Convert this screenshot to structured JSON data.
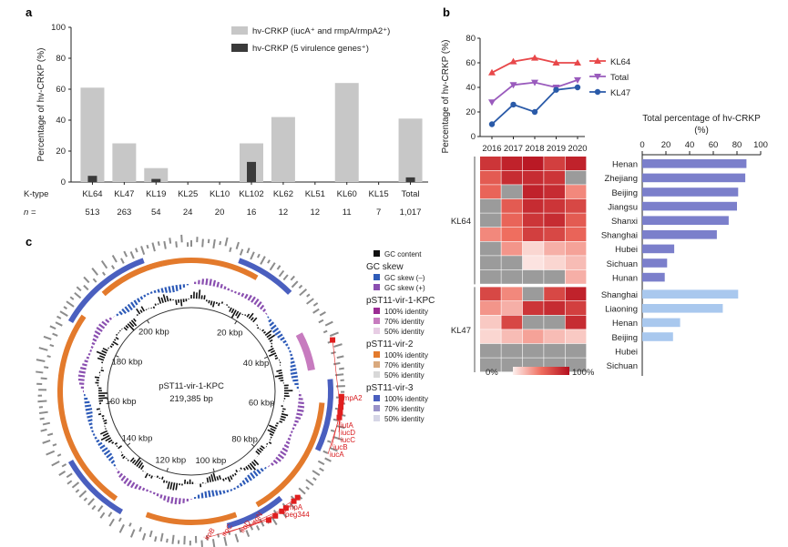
{
  "colors": {
    "bar_a": "#c7c7c7",
    "bar_b": "#3a3a3a",
    "kl64": "#e8484a",
    "total": "#9a5bbd",
    "kl47": "#2a5aa8",
    "prov_kl64": "#7b7fcb",
    "prov_kl47": "#a9c8ee",
    "heat_grey": "#9b9b9b",
    "gc_content": "#111111",
    "gc_neg": "#2e5bb8",
    "gc_pos": "#8a4fb0",
    "ring1": "#9b2b93",
    "ring1_70": "#c77bbf",
    "ring1_50": "#e7cde4",
    "ring2": "#e37a2c",
    "ring2_70": "#d9a97e",
    "ring2_50": "#d8d8d8",
    "ring3": "#4a5fbf",
    "ring3_70": "#9a93c9",
    "ring3_50": "#d6d6e6",
    "gene_red": "#e01f1f",
    "gene_grey": "#8c8c8c"
  },
  "panel_a": {
    "label": "a",
    "ylabel": "Percentage of hv-CRKP (%)",
    "yticks": [
      "0",
      "20",
      "40",
      "60",
      "80",
      "100"
    ],
    "row_ktype_label": "K-type",
    "row_n_label": "n =",
    "legend": [
      {
        "name": "hv-CRKP (iucA⁺ and rmpA/rmpA2⁺)"
      },
      {
        "name": "hv-CRKP (5 virulence genes⁺)"
      }
    ]
  },
  "panel_b": {
    "label": "b",
    "ylabel": "Percentage of hv-CRKP (%)",
    "yticks": [
      "0",
      "20",
      "40",
      "60",
      "80"
    ],
    "years": [
      "2016",
      "2017",
      "2018",
      "2019",
      "2020"
    ],
    "heat_group_labels": [
      "KL64",
      "KL47"
    ],
    "heat_scale_min": "0%",
    "heat_scale_max": "100%",
    "bar_title_line1": "Total percentage of hv-CRKP",
    "bar_title_line2": "(%)",
    "bar_ticks": [
      "0",
      "20",
      "40",
      "60",
      "80",
      "100"
    ]
  },
  "panel_c": {
    "label": "c",
    "center_name": "pST11-vir-1-KPC",
    "center_size": "219,385 bp",
    "kbp_labels": [
      "20 kbp",
      "40 kbp",
      "60 kbp",
      "80 kbp",
      "100 kbp",
      "120 kbp",
      "140 kbp",
      "160 kbp",
      "180 kbp",
      "200 kbp"
    ],
    "genes": [
      "rmpA2",
      "iutA",
      "iucD",
      "iucC",
      "iucB",
      "iucA",
      "rmpA",
      "peg344",
      "iroN",
      "iroD",
      "iroC",
      "iroB"
    ],
    "legend": {
      "gc_content": "GC content",
      "gc_skew_title": "GC skew",
      "gc_skew_neg": "GC skew (–)",
      "gc_skew_pos": "GC skew (+)",
      "p1_title": "pST11-vir-1-KPC",
      "p2_title": "pST11-vir-2",
      "p3_title": "pST11-vir-3",
      "id100": "100% identity",
      "id70": "70% identity",
      "id50": "50% identity"
    }
  },
  "chart_data": [
    {
      "type": "bar",
      "categories": [
        "KL64",
        "KL47",
        "KL19",
        "KL25",
        "KL10",
        "KL102",
        "KL62",
        "KL51",
        "KL60",
        "KL15",
        "Total"
      ],
      "n": [
        "513",
        "263",
        "54",
        "24",
        "20",
        "16",
        "12",
        "12",
        "11",
        "7",
        "1,017"
      ],
      "series": [
        {
          "name": "hv-CRKP (iucA⁺ and rmpA/rmpA2⁺)",
          "values": [
            61,
            25,
            9,
            0,
            0,
            25,
            42,
            0,
            64,
            0,
            41
          ]
        },
        {
          "name": "hv-CRKP (5 virulence genes⁺)",
          "values": [
            4,
            0,
            2,
            0,
            0,
            13,
            0,
            0,
            0,
            0,
            3
          ]
        }
      ],
      "xlabel": "K-type",
      "ylabel": "Percentage of hv-CRKP (%)",
      "ylim": [
        0,
        100
      ]
    },
    {
      "type": "line",
      "x": [
        "2016",
        "2017",
        "2018",
        "2019",
        "2020"
      ],
      "series": [
        {
          "name": "KL64",
          "values": [
            52,
            61,
            64,
            60,
            60
          ]
        },
        {
          "name": "Total",
          "values": [
            28,
            42,
            44,
            40,
            46
          ]
        },
        {
          "name": "KL47",
          "values": [
            10,
            26,
            20,
            38,
            40
          ]
        }
      ],
      "ylabel": "Percentage of hv-CRKP (%)",
      "ylim": [
        0,
        80
      ]
    },
    {
      "type": "heatmap",
      "years": [
        "2016",
        "2017",
        "2018",
        "2019",
        "2020"
      ],
      "groups": [
        {
          "name": "KL64",
          "rows": [
            {
              "province": "Henan",
              "values": [
                80,
                90,
                95,
                75,
                90
              ]
            },
            {
              "province": "Zhejiang",
              "values": [
                60,
                85,
                85,
                80,
                null
              ]
            },
            {
              "province": "Beijing",
              "values": [
                55,
                null,
                90,
                85,
                40
              ]
            },
            {
              "province": "Jiangsu",
              "values": [
                null,
                60,
                85,
                80,
                70
              ]
            },
            {
              "province": "Shanxi",
              "values": [
                null,
                55,
                80,
                85,
                60
              ]
            },
            {
              "province": "Shanghai",
              "values": [
                40,
                50,
                75,
                70,
                55
              ]
            },
            {
              "province": "Hubei",
              "values": [
                null,
                35,
                10,
                25,
                30
              ]
            },
            {
              "province": "Sichuan",
              "values": [
                null,
                null,
                5,
                10,
                20
              ]
            },
            {
              "province": "Hunan",
              "values": [
                null,
                null,
                null,
                null,
                25
              ]
            }
          ]
        },
        {
          "name": "KL47",
          "rows": [
            {
              "province": "Shanghai",
              "values": [
                70,
                40,
                null,
                70,
                90
              ]
            },
            {
              "province": "Liaoning",
              "values": [
                35,
                25,
                80,
                85,
                75
              ]
            },
            {
              "province": "Henan",
              "values": [
                15,
                70,
                null,
                null,
                85
              ]
            },
            {
              "province": "Beijing",
              "values": [
                10,
                20,
                30,
                20,
                15
              ]
            },
            {
              "province": "Hubei",
              "values": [
                null,
                null,
                null,
                null,
                null
              ]
            },
            {
              "province": "Sichuan",
              "values": [
                null,
                null,
                null,
                null,
                null
              ]
            }
          ]
        }
      ],
      "scale": [
        0,
        100
      ]
    },
    {
      "type": "bar",
      "orientation": "horizontal",
      "title": "Total percentage of hv-CRKP (%)",
      "groups": [
        {
          "name": "KL64",
          "categories": [
            "Henan",
            "Zhejiang",
            "Beijing",
            "Jiangsu",
            "Shanxi",
            "Shanghai",
            "Hubei",
            "Sichuan",
            "Hunan"
          ],
          "values": [
            88,
            87,
            81,
            80,
            73,
            63,
            27,
            21,
            19
          ]
        },
        {
          "name": "KL47",
          "categories": [
            "Shanghai",
            "Liaoning",
            "Henan",
            "Beijing",
            "Hubei",
            "Sichuan"
          ],
          "values": [
            81,
            68,
            32,
            26,
            0,
            0
          ]
        }
      ],
      "xlim": [
        0,
        100
      ]
    }
  ]
}
